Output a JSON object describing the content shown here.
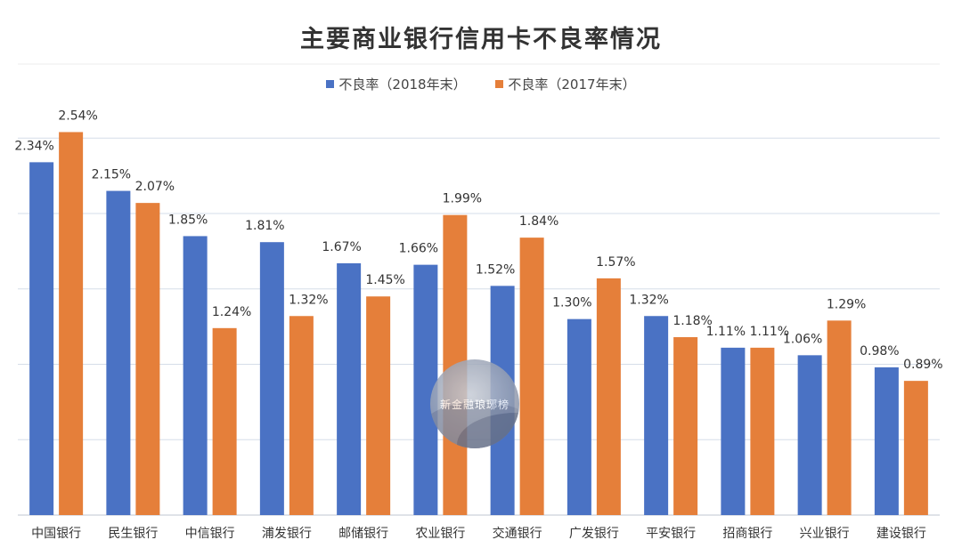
{
  "chart_data": {
    "type": "bar",
    "title": "主要商业银行信用卡不良率情况",
    "categories": [
      "中国银行",
      "民生银行",
      "中信银行",
      "浦发银行",
      "邮储银行",
      "农业银行",
      "交通银行",
      "广发银行",
      "平安银行",
      "招商银行",
      "兴业银行",
      "建设银行"
    ],
    "series": [
      {
        "name": "不良率（2018年末）",
        "color": "#4a72c4",
        "values": [
          2.34,
          2.15,
          1.85,
          1.81,
          1.67,
          1.66,
          1.52,
          1.3,
          1.32,
          1.11,
          1.06,
          0.98
        ],
        "labels": [
          "2.34%",
          "2.15%",
          "1.85%",
          "1.81%",
          "1.67%",
          "1.66%",
          "1.52%",
          "1.30%",
          "1.32%",
          "1.11%",
          "1.06%",
          "0.98%"
        ]
      },
      {
        "name": "不良率（2017年末）",
        "color": "#e57f3a",
        "values": [
          2.54,
          2.07,
          1.24,
          1.32,
          1.45,
          1.99,
          1.84,
          1.57,
          1.18,
          1.11,
          1.29,
          0.89
        ],
        "labels": [
          "2.54%",
          "2.07%",
          "1.24%",
          "1.32%",
          "1.45%",
          "1.99%",
          "1.84%",
          "1.57%",
          "1.18%",
          "1.11%",
          "1.29%",
          "0.89%"
        ]
      }
    ],
    "ylim": [
      0,
      2.6
    ],
    "gridlines": [
      0.5,
      1.0,
      1.5,
      2.0,
      2.5
    ],
    "grid": true,
    "legend_position": "top"
  },
  "watermark": {
    "text": "新金融琅琊榜"
  }
}
